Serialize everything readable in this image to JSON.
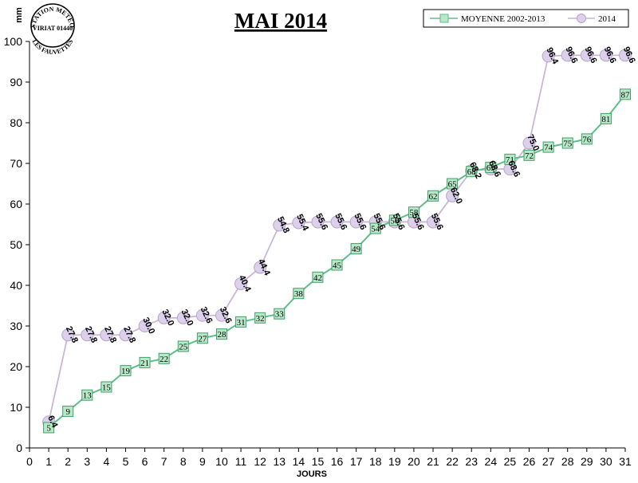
{
  "chart_data": {
    "type": "line",
    "title": "MAI 2014",
    "xlabel": "JOURS",
    "ylabel": "mm",
    "xlim": [
      0,
      31
    ],
    "ylim": [
      0,
      100
    ],
    "x_ticks": [
      0,
      1,
      2,
      3,
      4,
      5,
      6,
      7,
      8,
      9,
      10,
      11,
      12,
      13,
      14,
      15,
      16,
      17,
      18,
      19,
      20,
      21,
      22,
      23,
      24,
      25,
      26,
      27,
      28,
      29,
      30,
      31
    ],
    "y_ticks": [
      0,
      10,
      20,
      30,
      40,
      50,
      60,
      70,
      80,
      90,
      100
    ],
    "legend_position": "top-right",
    "grid": false,
    "series": [
      {
        "name": "MOYENNE 2002-2013",
        "color": "#5cbf8a",
        "marker": "square",
        "x": [
          1,
          2,
          3,
          4,
          5,
          6,
          7,
          8,
          9,
          10,
          11,
          12,
          13,
          14,
          15,
          16,
          17,
          18,
          19,
          20,
          21,
          22,
          23,
          24,
          25,
          26,
          27,
          28,
          29,
          30,
          31
        ],
        "values": [
          5,
          9,
          13,
          15,
          19,
          21,
          22,
          25,
          27,
          28,
          31,
          32,
          33,
          38,
          42,
          45,
          49,
          54,
          56,
          58,
          62,
          65,
          68,
          69,
          71,
          72,
          74,
          75,
          76,
          81,
          87
        ],
        "labels": [
          "5",
          "9",
          "13",
          "15",
          "19",
          "21",
          "22",
          "25",
          "27",
          "28",
          "31",
          "32",
          "33",
          "38",
          "42",
          "45",
          "49",
          "54",
          "56",
          "58",
          "62",
          "65",
          "68",
          "69",
          "71",
          "72",
          "74",
          "75",
          "76",
          "81",
          "87"
        ]
      },
      {
        "name": "2014",
        "color": "#c9b6d8",
        "marker": "circle",
        "x": [
          1,
          2,
          3,
          4,
          5,
          6,
          7,
          8,
          9,
          10,
          11,
          12,
          13,
          14,
          15,
          16,
          17,
          18,
          19,
          20,
          21,
          22,
          23,
          24,
          25,
          26,
          27,
          28,
          29,
          30,
          31
        ],
        "values": [
          6.4,
          27.8,
          27.8,
          27.8,
          27.8,
          30.0,
          32.0,
          32.0,
          32.6,
          32.6,
          40.4,
          44.4,
          54.8,
          55.4,
          55.6,
          55.6,
          55.6,
          55.6,
          55.6,
          55.6,
          55.6,
          62.0,
          68.2,
          68.6,
          68.6,
          75.0,
          96.4,
          96.6,
          96.6,
          96.6,
          96.6
        ],
        "labels": [
          "6.4",
          "27.8",
          "27.8",
          "27.8",
          "27.8",
          "30.0",
          "32.0",
          "32.0",
          "32.6",
          "32.6",
          "40.4",
          "44.4",
          "54.8",
          "55.4",
          "55.6",
          "55.6",
          "55.6",
          "55.6",
          "55.6",
          "55.6",
          "55.6",
          "62.0",
          "68.2",
          "68.6",
          "68.6",
          "75.0",
          "96.4",
          "96.6",
          "96.6",
          "96.6",
          "96.6"
        ]
      }
    ]
  },
  "stamp": {
    "line1": "STATION METEO",
    "line2": "VIRIAT 01440",
    "line3": "LES FAUVETTES"
  }
}
